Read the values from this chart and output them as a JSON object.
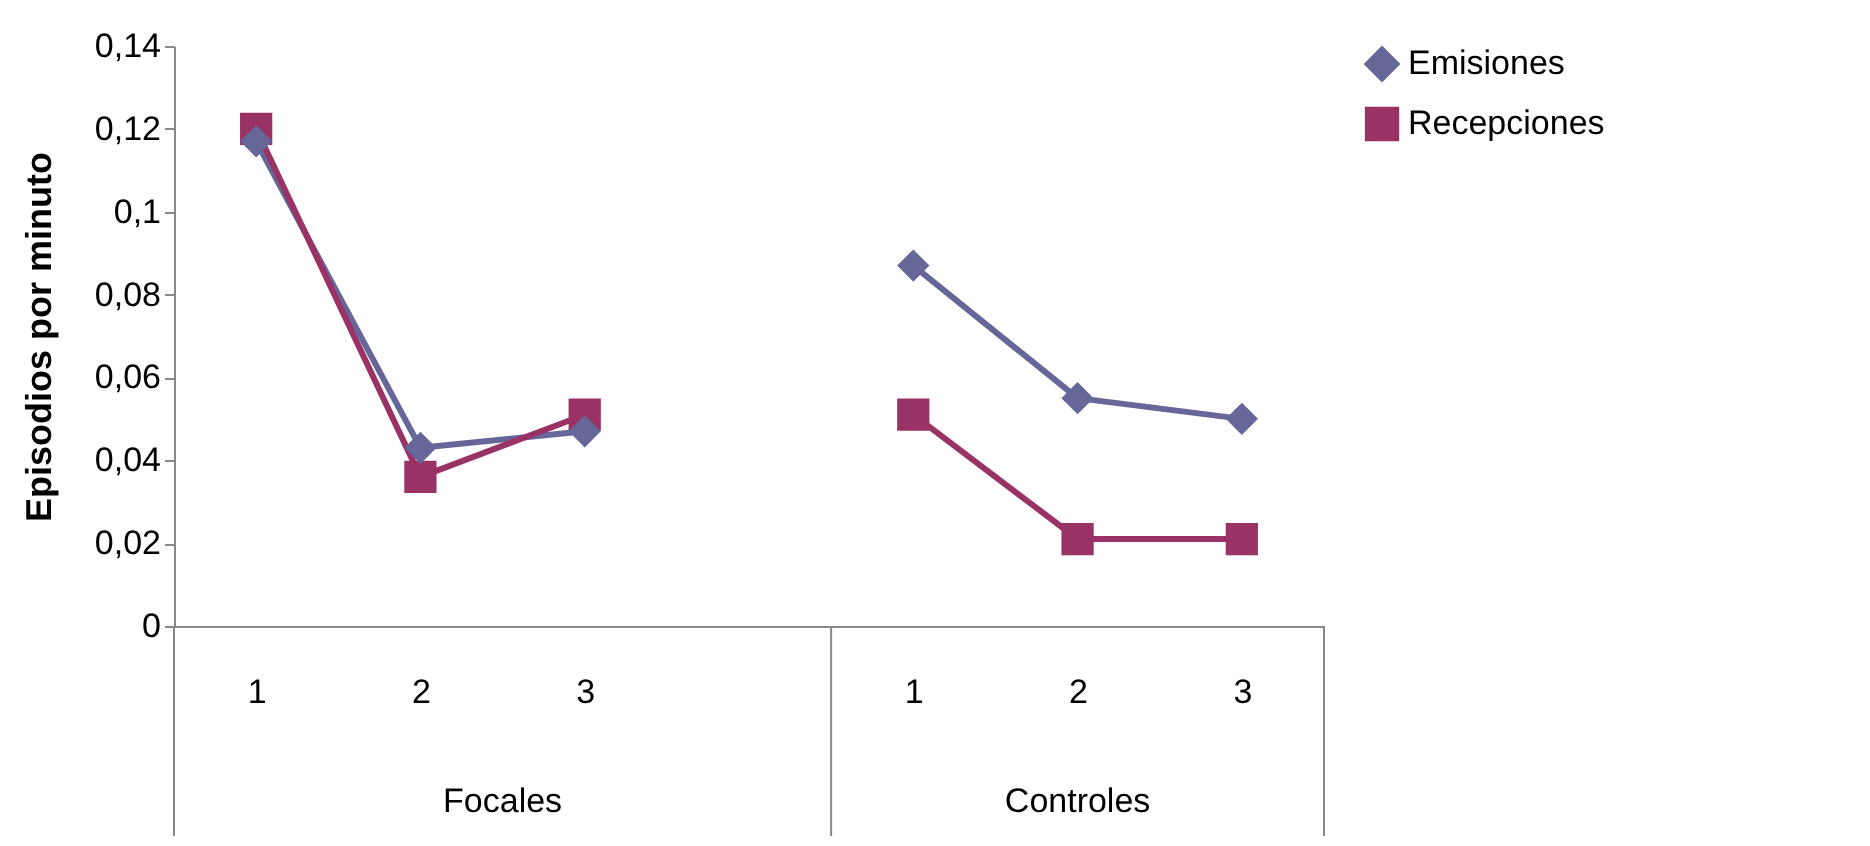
{
  "chart_data": {
    "type": "line",
    "ylabel": "Episodios por minuto",
    "categories": [
      "1",
      "2",
      "3",
      null,
      "1",
      "2",
      "3"
    ],
    "series": [
      {
        "name": "Emisiones",
        "color": "#666699",
        "marker": "diamond",
        "values": [
          0.117,
          0.043,
          0.047,
          null,
          0.087,
          0.055,
          0.05
        ]
      },
      {
        "name": "Recepciones",
        "color": "#993366",
        "marker": "square",
        "values": [
          0.12,
          0.036,
          0.051,
          null,
          0.051,
          0.021,
          0.021
        ]
      }
    ],
    "ylim": [
      0,
      0.14
    ],
    "yticks": [
      0,
      {
        "value": 0.02,
        "label": "0,02"
      },
      {
        "value": 0.04,
        "label": "0,04"
      },
      {
        "value": 0.06,
        "label": "0,06"
      },
      {
        "value": 0.08,
        "label": "0,08"
      },
      {
        "value": 0.1,
        "label": "0,1"
      },
      {
        "value": 0.12,
        "label": "0,12"
      },
      {
        "value": 0.14,
        "label": "0,14"
      }
    ],
    "annotations": [
      "Focales",
      "Controles"
    ],
    "grid": false,
    "legend": "right",
    "line_style": "solid"
  }
}
